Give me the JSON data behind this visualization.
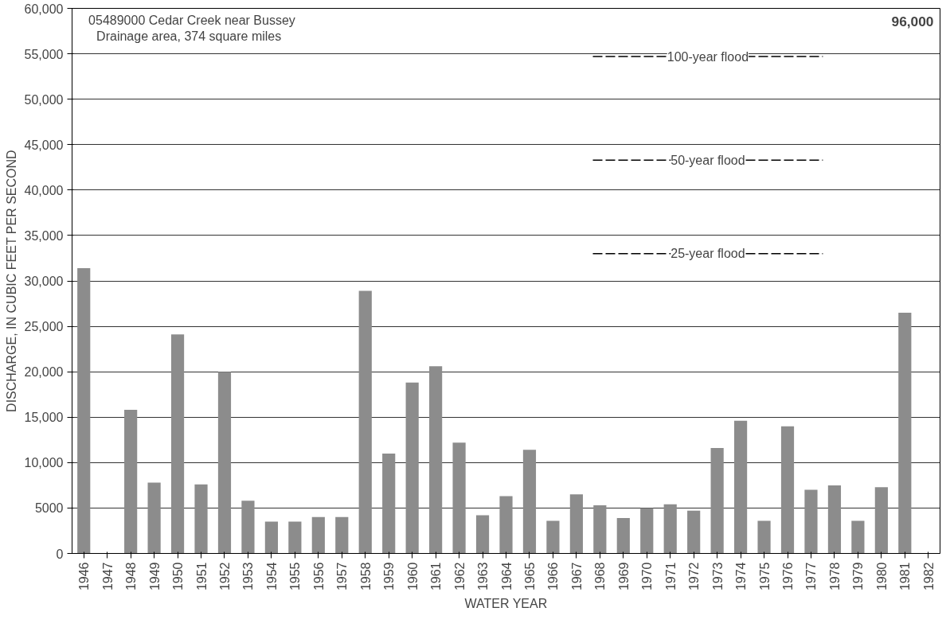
{
  "chart_data": {
    "type": "bar",
    "title": "05489000  Cedar Creek near Bussey",
    "subtitle": "Drainage area, 374 square miles",
    "xlabel": "WATER YEAR",
    "ylabel": "DISCHARGE, IN CUBIC FEET PER SECOND",
    "categories": [
      "1946",
      "1947",
      "1948",
      "1949",
      "1950",
      "1951",
      "1952",
      "1953",
      "1954",
      "1955",
      "1956",
      "1957",
      "1958",
      "1959",
      "1960",
      "1961",
      "1962",
      "1963",
      "1964",
      "1965",
      "1966",
      "1967",
      "1968",
      "1969",
      "1970",
      "1971",
      "1972",
      "1973",
      "1974",
      "1975",
      "1976",
      "1977",
      "1978",
      "1979",
      "1980",
      "1981",
      "1982"
    ],
    "values": [
      31400,
      null,
      15800,
      7800,
      24100,
      7600,
      20000,
      5800,
      3500,
      3500,
      4000,
      4000,
      28900,
      11000,
      18800,
      20600,
      12200,
      4200,
      6300,
      11400,
      3600,
      6500,
      5300,
      3900,
      5000,
      5400,
      4700,
      11600,
      14600,
      3600,
      14000,
      7000,
      7500,
      3600,
      7300,
      26500,
      null
    ],
    "annotations": [
      "96,000"
    ],
    "color": "#8c8c8c",
    "ylim": [
      0,
      60000
    ],
    "yticks": [
      0,
      {
        "value": 5000,
        "label": "5000"
      },
      {
        "value": 10000,
        "label": "10,000"
      },
      {
        "value": 15000,
        "label": "15,000"
      },
      {
        "value": 20000,
        "label": "20,000"
      },
      {
        "value": 25000,
        "label": "25,000"
      },
      {
        "value": 30000,
        "label": "30,000"
      },
      {
        "value": 35000,
        "label": "35,000"
      },
      {
        "value": 40000,
        "label": "40,000"
      },
      {
        "value": 45000,
        "label": "45,000"
      },
      {
        "value": 50000,
        "label": "50,000"
      },
      {
        "value": 55000,
        "label": "55,000"
      },
      {
        "value": 60000,
        "label": "60,000"
      }
    ],
    "grid": "y",
    "ref_lines": [
      {
        "axis": "y",
        "value": 54700,
        "label": "100-year flood",
        "line_style": "dashed"
      },
      {
        "axis": "y",
        "value": 43300,
        "label": "50-year flood",
        "line_style": "dashed"
      },
      {
        "axis": "y",
        "value": 33000,
        "label": "25-year flood",
        "line_style": "dashed"
      }
    ]
  }
}
